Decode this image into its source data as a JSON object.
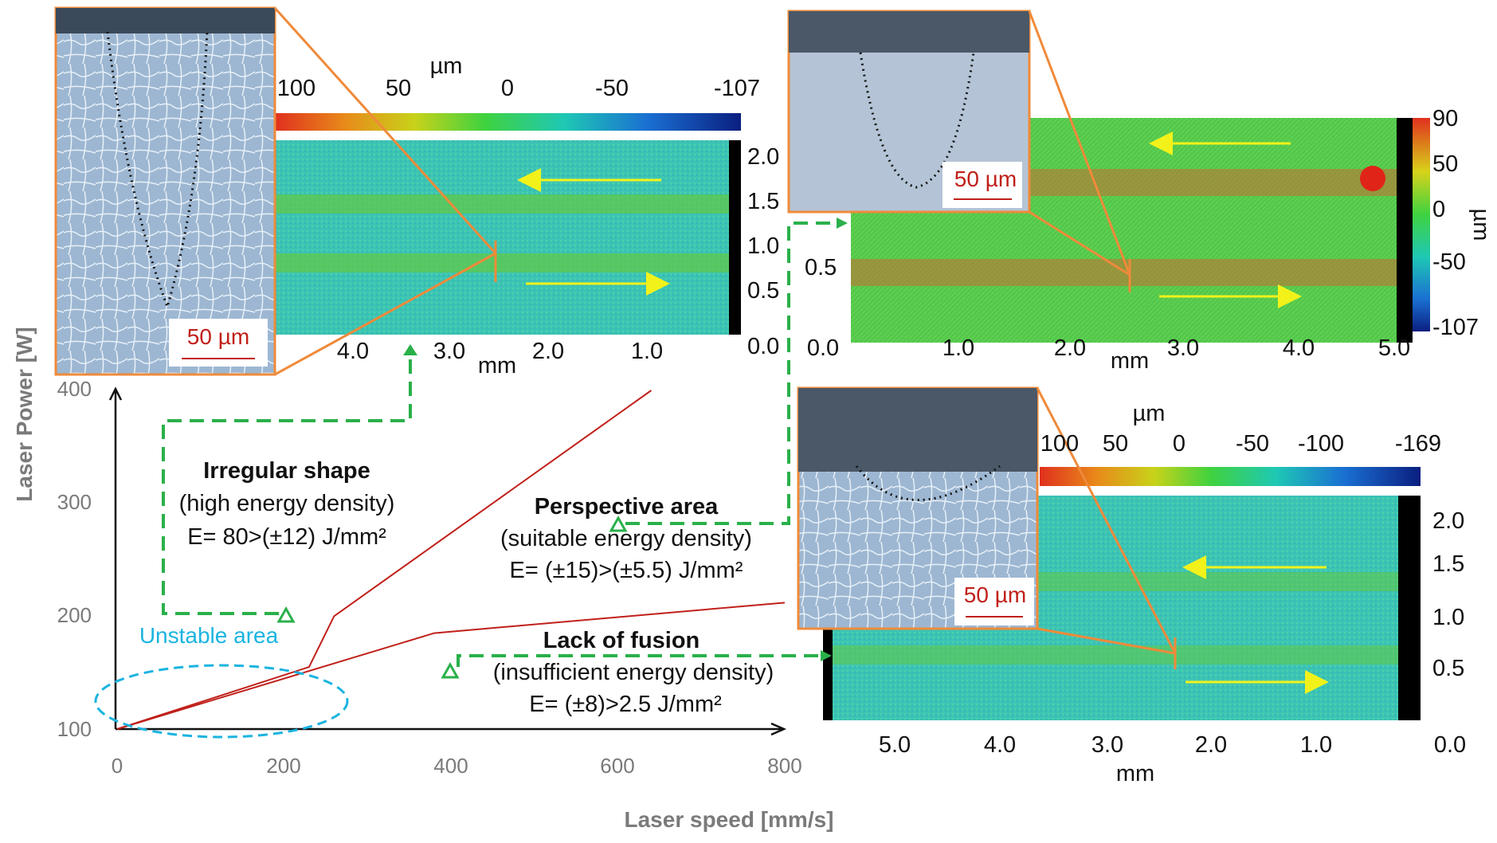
{
  "chart_data": {
    "type": "line",
    "xlabel": "Laser speed [mm/s]",
    "ylabel": "Laser Power [W]",
    "xlim": [
      0,
      800
    ],
    "ylim": [
      100,
      400
    ],
    "xticks": [
      "0",
      "200",
      "400",
      "600",
      "800"
    ],
    "yticks": [
      "100",
      "200",
      "300",
      "400"
    ],
    "series": [
      {
        "x": [
          0,
          230,
          260,
          640
        ],
        "y": [
          100,
          155,
          200,
          400
        ]
      },
      {
        "x": [
          0,
          380,
          800
        ],
        "y": [
          100,
          185,
          212
        ]
      }
    ],
    "regions": [
      {
        "title": "Irregular shape",
        "desc": "(high energy density)",
        "energy": "E= 80>(±12) J/mm²"
      },
      {
        "title": "Perspective area",
        "desc": "(suitable energy density)",
        "energy": "E= (±15)>(±5.5) J/mm²"
      },
      {
        "title": "Lack of fusion",
        "desc": "(insufficient energy density)",
        "energy": "E= (±8)>2.5 J/mm²"
      }
    ],
    "unstable_label": "Unstable area",
    "maps": [
      {
        "unit": "µm",
        "colorbar_ticks": [
          "100",
          "50",
          "0",
          "-50",
          "-107"
        ],
        "y_ticks": [
          "2.0",
          "1.5",
          "1.0",
          "0.5",
          "0.0"
        ],
        "x_ticks": [
          "4.0",
          "3.0",
          "2.0",
          "1.0"
        ],
        "x_unit": "mm",
        "scale_bar": "50 µm"
      },
      {
        "unit": "µm",
        "colorbar_ticks": [
          "90",
          "50",
          "0",
          "-50",
          "-107"
        ],
        "y_ticks": [
          "0.5"
        ],
        "x_ticks": [
          "0.0",
          "1.0",
          "2.0",
          "3.0",
          "4.0",
          "5.0"
        ],
        "x_unit": "mm",
        "scale_bar": "50 µm"
      },
      {
        "unit": "µm",
        "colorbar_ticks": [
          "100",
          "50",
          "0",
          "-50",
          "-100",
          "-169"
        ],
        "y_ticks": [
          "2.0",
          "1.5",
          "1.0",
          "0.5"
        ],
        "x_ticks": [
          "5.0",
          "4.0",
          "3.0",
          "2.0",
          "1.0",
          "0.0"
        ],
        "x_unit": "mm",
        "scale_bar": "50 µm"
      }
    ]
  }
}
